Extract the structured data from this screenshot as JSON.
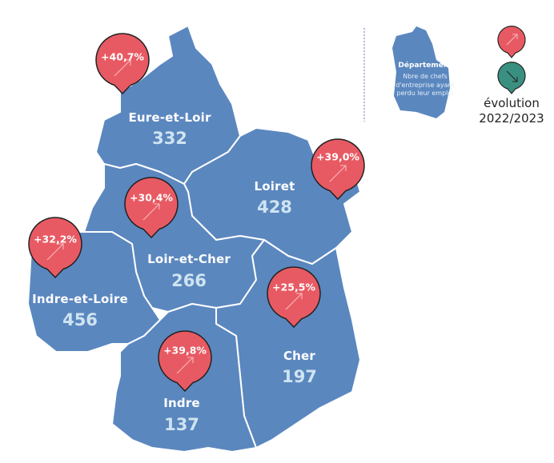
{
  "colors": {
    "department": "#5b87bf",
    "increase": "#e85a63",
    "decrease": "#3a9080",
    "value": "#cfe4f1"
  },
  "departments": [
    {
      "name": "Eure-et-Loir",
      "value": "332",
      "evolution": "+40,7%",
      "trend": "up"
    },
    {
      "name": "Loiret",
      "value": "428",
      "evolution": "+39,0%",
      "trend": "up"
    },
    {
      "name": "Loir-et-Cher",
      "value": "266",
      "evolution": "+30,4%",
      "trend": "up"
    },
    {
      "name": "Indre-et-Loire",
      "value": "456",
      "evolution": "+32,2%",
      "trend": "up"
    },
    {
      "name": "Cher",
      "value": "197",
      "evolution": "+25,5%",
      "trend": "up"
    },
    {
      "name": "Indre",
      "value": "137",
      "evolution": "+39,8%",
      "trend": "up"
    }
  ],
  "legend": {
    "title": "Département",
    "description": "Nbre de chefs d'entreprise ayant perdu leur emploi",
    "evolution_line1": "évolution",
    "evolution_line2": "2022/2023",
    "icons": [
      "arrow-up-pin",
      "arrow-down-pin"
    ]
  }
}
